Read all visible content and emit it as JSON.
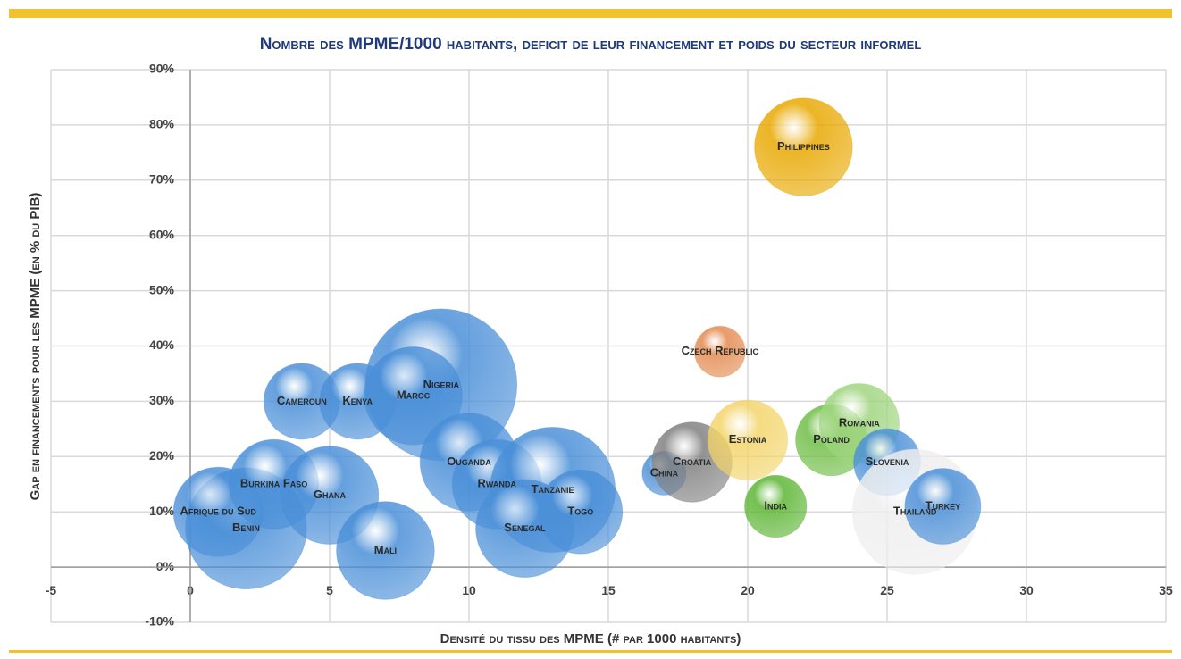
{
  "chart_data": {
    "type": "bubble",
    "title": "Nombre des MPME/1000 habitants, deficit de leur financement et poids du secteur informel",
    "x_label": "Densité du tissu des MPME (# par 1000 habitants)",
    "y_label": "Gap en financements pour les MPME (en % du PIB)",
    "xlim": [
      -5,
      35
    ],
    "xticks": [
      -5,
      0,
      5,
      10,
      15,
      20,
      25,
      30,
      35
    ],
    "ylim": [
      -10,
      90
    ],
    "yticks": [
      {
        "value": -10,
        "label": "-10%"
      },
      {
        "value": 0,
        "label": "0%"
      },
      {
        "value": 10,
        "label": "10%"
      },
      {
        "value": 20,
        "label": "20%"
      },
      {
        "value": 30,
        "label": "30%"
      },
      {
        "value": 40,
        "label": "40%"
      },
      {
        "value": 50,
        "label": "50%"
      },
      {
        "value": 60,
        "label": "60%"
      },
      {
        "value": 70,
        "label": "70%"
      },
      {
        "value": 80,
        "label": "80%"
      },
      {
        "value": 90,
        "label": "90%"
      }
    ],
    "grid": true,
    "series": [
      {
        "name": "Benin",
        "color": "#4a8fd8",
        "x": [
          2
        ],
        "values": [
          7
        ],
        "sizes": [
          46
        ]
      },
      {
        "name": "Afrique du Sud",
        "color": "#4a8fd8",
        "x": [
          1
        ],
        "values": [
          10
        ],
        "sizes": [
          25
        ]
      },
      {
        "name": "Burkina Faso",
        "color": "#4a8fd8",
        "x": [
          3
        ],
        "values": [
          15
        ],
        "sizes": [
          25
        ]
      },
      {
        "name": "Ghana",
        "color": "#4a8fd8",
        "x": [
          5
        ],
        "values": [
          13
        ],
        "sizes": [
          30
        ]
      },
      {
        "name": "Mali",
        "color": "#4a8fd8",
        "x": [
          7
        ],
        "values": [
          3
        ],
        "sizes": [
          30
        ]
      },
      {
        "name": "Cameroun",
        "color": "#4a8fd8",
        "x": [
          4
        ],
        "values": [
          30
        ],
        "sizes": [
          18
        ]
      },
      {
        "name": "Kenya",
        "color": "#4a8fd8",
        "x": [
          6
        ],
        "values": [
          30
        ],
        "sizes": [
          18
        ]
      },
      {
        "name": "Nigeria",
        "color": "#4a8fd8",
        "x": [
          9
        ],
        "values": [
          33
        ],
        "sizes": [
          72
        ]
      },
      {
        "name": "Maroc",
        "color": "#4a8fd8",
        "x": [
          8
        ],
        "values": [
          31
        ],
        "sizes": [
          30
        ]
      },
      {
        "name": "Ouganda",
        "color": "#4a8fd8",
        "x": [
          10
        ],
        "values": [
          19
        ],
        "sizes": [
          30
        ]
      },
      {
        "name": "Rwanda",
        "color": "#4a8fd8",
        "x": [
          11
        ],
        "values": [
          15
        ],
        "sizes": [
          25
        ]
      },
      {
        "name": "Tanzanie",
        "color": "#4a8fd8",
        "x": [
          13
        ],
        "values": [
          14
        ],
        "sizes": [
          49
        ]
      },
      {
        "name": "Senegal",
        "color": "#4a8fd8",
        "x": [
          12
        ],
        "values": [
          7
        ],
        "sizes": [
          30
        ]
      },
      {
        "name": "Togo",
        "color": "#4a8fd8",
        "x": [
          14
        ],
        "values": [
          10
        ],
        "sizes": [
          22
        ]
      },
      {
        "name": "China",
        "color": "#4a8fd8",
        "x": [
          17
        ],
        "values": [
          17
        ],
        "sizes": [
          6
        ]
      },
      {
        "name": "Croatia",
        "color": "#808080",
        "x": [
          18
        ],
        "values": [
          19
        ],
        "sizes": [
          20
        ]
      },
      {
        "name": "Czech Republic",
        "color": "#e38a4f",
        "x": [
          19
        ],
        "values": [
          39
        ],
        "sizes": [
          8
        ]
      },
      {
        "name": "Estonia",
        "color": "#f3d46a",
        "x": [
          20
        ],
        "values": [
          23
        ],
        "sizes": [
          20
        ]
      },
      {
        "name": "India",
        "color": "#5cb533",
        "x": [
          21
        ],
        "values": [
          11
        ],
        "sizes": [
          12
        ]
      },
      {
        "name": "Philippines",
        "color": "#e8a800",
        "x": [
          22
        ],
        "values": [
          76
        ],
        "sizes": [
          30
        ]
      },
      {
        "name": "Poland",
        "color": "#6fbd45",
        "x": [
          23
        ],
        "values": [
          23
        ],
        "sizes": [
          16
        ]
      },
      {
        "name": "Romania",
        "color": "#9fd57f",
        "x": [
          24
        ],
        "values": [
          26
        ],
        "sizes": [
          20
        ]
      },
      {
        "name": "Slovenia",
        "color": "#4a8fd8",
        "x": [
          25
        ],
        "values": [
          19
        ],
        "sizes": [
          14
        ]
      },
      {
        "name": "Thailand",
        "color": "#eeeeee",
        "x": [
          26
        ],
        "values": [
          10
        ],
        "sizes": [
          49
        ]
      },
      {
        "name": "Turkey",
        "color": "#4a8fd8",
        "x": [
          27
        ],
        "values": [
          11
        ],
        "sizes": [
          18
        ]
      }
    ]
  }
}
